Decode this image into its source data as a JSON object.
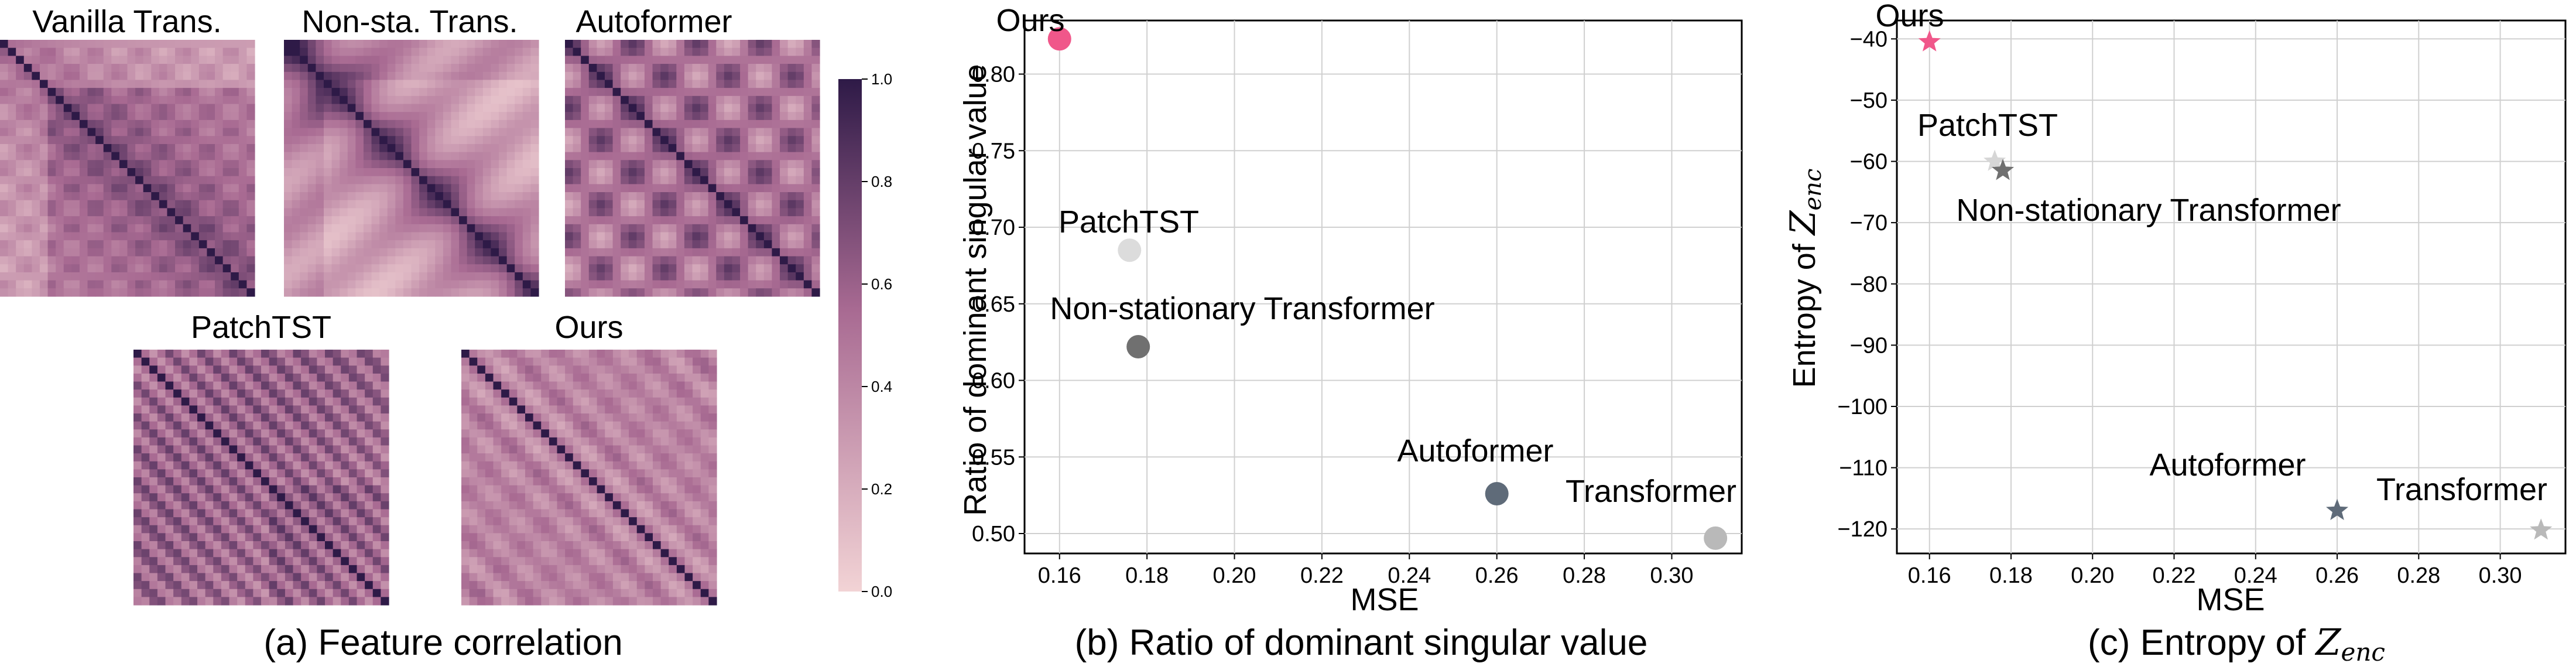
{
  "panel_a": {
    "caption": "(a) Feature correlation",
    "heatmaps": [
      {
        "title": "Vanilla Trans.",
        "pattern": "vanilla"
      },
      {
        "title": "Non-sta. Trans.",
        "pattern": "nonsta"
      },
      {
        "title": "Autoformer",
        "pattern": "autoformer"
      },
      {
        "title": "PatchTST",
        "pattern": "patchtst"
      },
      {
        "title": "Ours",
        "pattern": "ours"
      }
    ],
    "colorbar": {
      "ticks": [
        "0.0",
        "0.2",
        "0.4",
        "0.6",
        "0.8",
        "1.0"
      ],
      "color_low": "#f2d3d5",
      "color_mid": "#a86a92",
      "color_high": "#2e1a47"
    }
  },
  "panel_b": {
    "caption": "(b) Ratio of dominant singular value"
  },
  "panel_c": {
    "caption_prefix": "(c) Entropy of ",
    "caption_symbol": "Z",
    "caption_sub": "enc"
  },
  "chart_data": [
    {
      "type": "heatmap",
      "titles": [
        "Vanilla Trans.",
        "Non-sta. Trans.",
        "Autoformer",
        "PatchTST",
        "Ours"
      ],
      "value_range": [
        0.0,
        1.0
      ],
      "colorbar_ticks": [
        0.0,
        0.2,
        0.4,
        0.6,
        0.8,
        1.0
      ]
    },
    {
      "type": "scatter",
      "xlabel": "MSE",
      "ylabel": "Ratio of dominant singular value",
      "xlim": [
        0.152,
        0.316
      ],
      "ylim": [
        0.487,
        0.835
      ],
      "xticks": [
        0.16,
        0.18,
        0.2,
        0.22,
        0.24,
        0.26,
        0.28,
        0.3
      ],
      "yticks": [
        0.5,
        0.55,
        0.6,
        0.65,
        0.7,
        0.75,
        0.8
      ],
      "grid": true,
      "points": [
        {
          "label": "Ours",
          "x": 0.16,
          "y": 0.823,
          "color": "#f0578a"
        },
        {
          "label": "PatchTST",
          "x": 0.176,
          "y": 0.685,
          "color": "#dcdcdc"
        },
        {
          "label": "Non-stationary Transformer",
          "x": 0.178,
          "y": 0.622,
          "color": "#707070"
        },
        {
          "label": "Autoformer",
          "x": 0.26,
          "y": 0.526,
          "color": "#5f6b79"
        },
        {
          "label": "Transformer",
          "x": 0.31,
          "y": 0.497,
          "color": "#b9b9b9"
        }
      ]
    },
    {
      "type": "scatter",
      "xlabel": "MSE",
      "ylabel_prefix": "Entropy of ",
      "ylabel_symbol": "Z",
      "ylabel_sub": "enc",
      "xlim": [
        0.152,
        0.316
      ],
      "ylim": [
        -124,
        -37
      ],
      "xticks": [
        0.16,
        0.18,
        0.2,
        0.22,
        0.24,
        0.26,
        0.28,
        0.3
      ],
      "yticks": [
        -40,
        -50,
        -60,
        -70,
        -80,
        -90,
        -100,
        -110,
        -120
      ],
      "grid": true,
      "marker": "star",
      "points": [
        {
          "label": "Ours",
          "x": 0.16,
          "y": -40.5,
          "color": "#f0578a"
        },
        {
          "label": "PatchTST",
          "x": 0.176,
          "y": -60,
          "color": "#d6d6d6"
        },
        {
          "label": "Non-stationary Transformer",
          "x": 0.178,
          "y": -61.5,
          "color": "#707070"
        },
        {
          "label": "Autoformer",
          "x": 0.26,
          "y": -117,
          "color": "#5f6b79"
        },
        {
          "label": "Transformer",
          "x": 0.31,
          "y": -120.2,
          "color": "#b9b9b9"
        }
      ]
    }
  ]
}
